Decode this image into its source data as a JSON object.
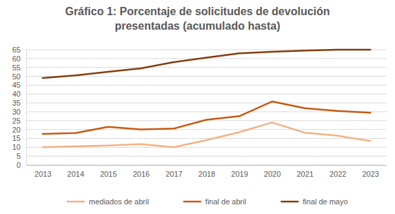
{
  "chart_data": {
    "type": "line",
    "title": "Gráfico 1: Porcentaje de solicitudes de devolución presentadas (acumulado hasta)",
    "categories": [
      "2013",
      "2014",
      "2015",
      "2016",
      "2017",
      "2018",
      "2019",
      "2020",
      "2021",
      "2022",
      "2023"
    ],
    "series": [
      {
        "name": "mediados de abril",
        "color": "#f4b183",
        "values": [
          10,
          10.5,
          11,
          11.8,
          10,
          14,
          18.5,
          24,
          18.2,
          16.5,
          13.5
        ]
      },
      {
        "name": "final de abril",
        "color": "#c55a11",
        "values": [
          17.5,
          18,
          21.5,
          20,
          20.5,
          25.5,
          27.5,
          35.8,
          32,
          30.5,
          29.5
        ]
      },
      {
        "name": "final de mayo",
        "color": "#843c0c",
        "values": [
          49,
          50.5,
          52.5,
          54.5,
          58,
          60.5,
          63,
          63.8,
          64.5,
          65,
          65
        ]
      }
    ],
    "ylim": [
      0,
      65
    ],
    "yticks": [
      0,
      5,
      10,
      15,
      20,
      25,
      30,
      35,
      40,
      45,
      50,
      55,
      60,
      65
    ],
    "grid": true,
    "legend": "bottom"
  }
}
